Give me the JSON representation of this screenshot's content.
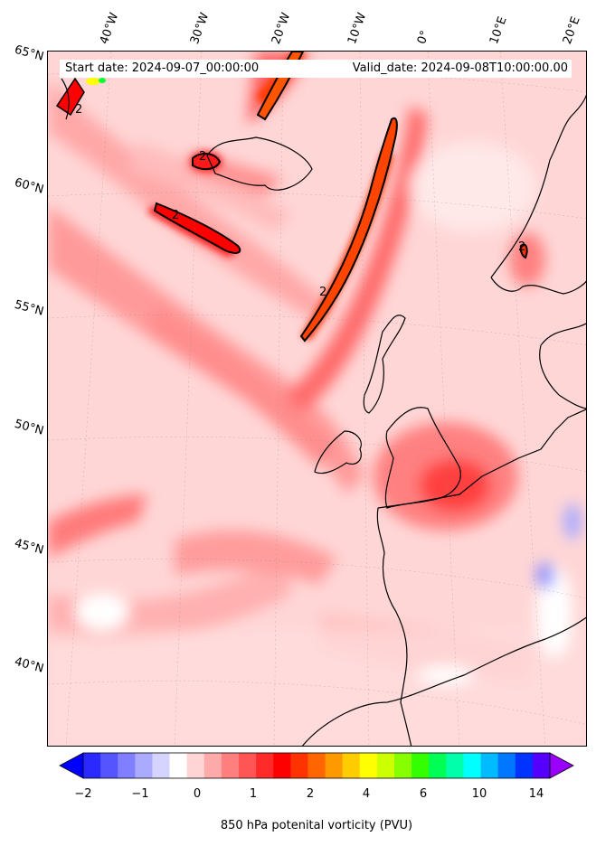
{
  "header": {
    "start_date": "Start date: 2024-09-07_00:00:00",
    "valid_date": "Valid_date: 2024-09-08T10:00:00.00"
  },
  "longitude_labels": [
    "40°W",
    "30°W",
    "20°W",
    "10°W",
    "0°",
    "10°E",
    "20°E"
  ],
  "latitude_labels": [
    "65°N",
    "60°N",
    "55°N",
    "50°N",
    "45°N",
    "40°N"
  ],
  "contour_label": "2",
  "colorbar": {
    "label": "850 hPa potenital vorticity (PVU)",
    "ticks": [
      "−2",
      "−1",
      "0",
      "1",
      "2",
      "4",
      "6",
      "10",
      "14"
    ],
    "colors": [
      "#0000ff",
      "#2a2aff",
      "#5555ff",
      "#7f7fff",
      "#aaaaff",
      "#d4d4ff",
      "#ffffff",
      "#ffd4d4",
      "#ffaaaa",
      "#ff7f7f",
      "#ff5555",
      "#ff2a2a",
      "#ff0000",
      "#ff3300",
      "#ff6600",
      "#ff9900",
      "#ffcc00",
      "#ffff00",
      "#ccff00",
      "#88ff00",
      "#33ff00",
      "#00ff55",
      "#00ffaa",
      "#00ffff",
      "#00bbff",
      "#0077ff",
      "#0033ff",
      "#5500ff",
      "#9900ff"
    ]
  }
}
